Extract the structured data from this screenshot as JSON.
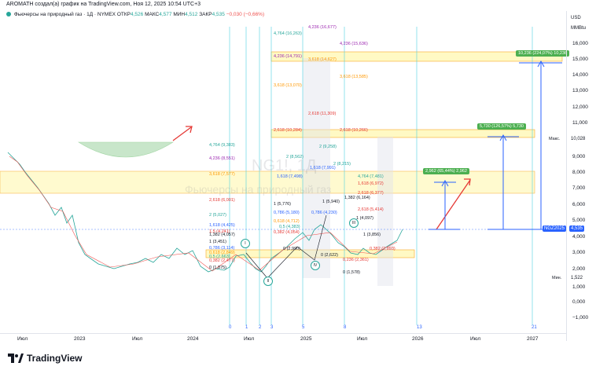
{
  "header": {
    "author_line": "AROMATH создал(а) график на TradingView.com, Ноя 12, 2025 10:54 UTC+3",
    "symbol": "Фьючерсы на природный газ · 1Д · NYMEX",
    "open_label": "ОТКР",
    "open_value": "4,526",
    "high_label": "МАКС",
    "high_value": "4,577",
    "low_label": "МИН",
    "low_value": "4,512",
    "close_label": "ЗАКР",
    "close_value": "4,535",
    "change": "−0,030 (−0,66%)"
  },
  "price_axis": {
    "currency": "USD",
    "unit": "MMBtu",
    "ticks": [
      "16,000",
      "15,000",
      "14,000",
      "13,000",
      "12,000",
      "11,000",
      "10,000",
      "9,000",
      "8,000",
      "7,000",
      "6,000",
      "5,000",
      "4,000",
      "3,000",
      "2,000",
      "1,000",
      "0,000",
      "−1,000"
    ],
    "max_label": "Макс.",
    "max_value": "10,028",
    "current_label": "NGZ2025",
    "current_value": "4,535",
    "min_label": "Мин.",
    "min_value": "1,522"
  },
  "time_axis": {
    "ticks": [
      "Июл",
      "2023",
      "Июл",
      "2024",
      "Июл",
      "2025",
      "Июл",
      "2026",
      "Июл",
      "2027"
    ]
  },
  "watermark": {
    "symbol": "NG1!, 1Д",
    "name": "Фьючерсы на природный газ"
  },
  "cycle_numbers": [
    "0",
    "1",
    "2",
    "3",
    "5",
    "8",
    "13",
    "21"
  ],
  "targets": {
    "t1": "2,962 (65,44%) 2,962",
    "t2": "5,730 (126,57%) 5,730",
    "t3": "10,236 (224,07%) 10,236"
  },
  "fib_labels": {
    "a": "4,764 (9,383)",
    "b": "4,236 (8,551)",
    "c": "3,618 (7,577)",
    "d": "2,618 (6,001)",
    "e": "2 (5,027)",
    "f": "1,618 (4,425)",
    "g": "1,5 (4,241)",
    "h": "1,382 (4,057)",
    "i": "1 (3,451)",
    "j": "0,786 (3,114)",
    "k": "0,618 (2,849)",
    "l": "0,5 (2,663)",
    "m": "0,382 (2,477)",
    "n": "0 (1,875)",
    "o": "4,764 (16,263)",
    "p": "4,236 (16,677)",
    "q": "4,236 (14,791)",
    "r": "3,618 (14,627)",
    "s": "4,236 (15,636)",
    "t": "3,618 (13,070)",
    "u": "3,618 (13,585)",
    "v": "2,618 (11,309)",
    "w": "2,618 (10,284)",
    "x": "2,618 (10,266)",
    "y": "2 (9,258)",
    "z": "2 (8,562)",
    "aa": "1,618 (7,498)",
    "ab": "1,618 (7,991)",
    "ac": "2 (8,215)",
    "ad": "1 (5,776)",
    "ae": "1 (5,940)",
    "af": "0,786 (5,180)",
    "ag": "0,618 (4,712)",
    "ah": "0,5 (4,383)",
    "ai": "0,382 (4,054)",
    "aj": "0 (2,990)",
    "ak": "0 (2,622)",
    "al": "4,764 (7,481)",
    "am": "2,618 (5,414)",
    "an": "1 (3,856)",
    "ao": "0 (1,578)",
    "ap": "0,236 (2,361)",
    "aq": "0,382 (2,893)",
    "ar": "1,382 (6,164)",
    "as": "1,618 (6,972)",
    "at": "1 (4,097)",
    "au": "0,786 (4,230)",
    "av": "2,618 (6,377)"
  },
  "wave_marks": [
    "I",
    "II",
    "III",
    "IV"
  ],
  "colors": {
    "up": "#26a69a",
    "down": "#ef5350",
    "blue": "#2962ff",
    "fib_box": "#fff9c4",
    "fib_border": "#f9a825",
    "purple": "#9c27b0",
    "orange": "#ff9800",
    "green_box": "#4caf50"
  },
  "footer": {
    "brand": "TradingView"
  }
}
